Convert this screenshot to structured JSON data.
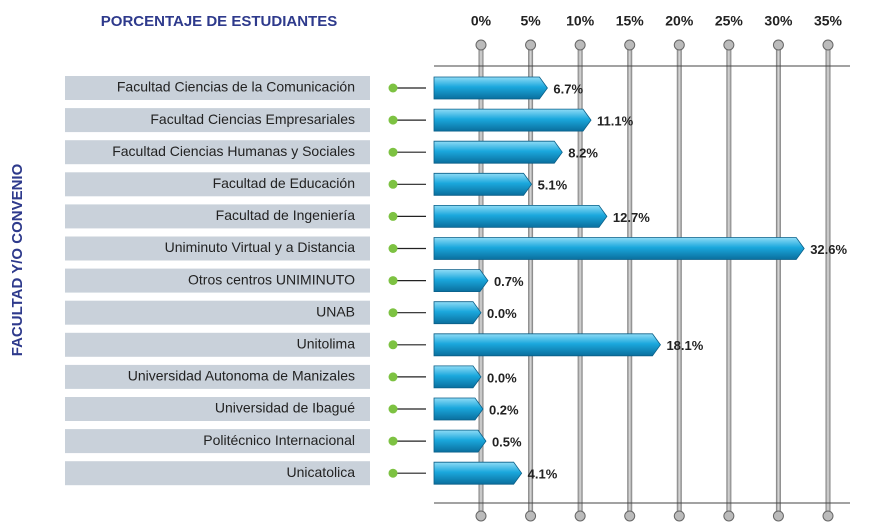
{
  "chart_data": {
    "type": "bar",
    "orientation": "horizontal",
    "title": "PORCENTAJE DE ESTUDIANTES",
    "y_label": "FACULTAD Y/O CONVENIO",
    "categories": [
      "Facultad Ciencias de la Comunicación",
      "Facultad Ciencias Empresariales",
      "Facultad Ciencias Humanas y Sociales",
      "Facultad de Educación",
      "Facultad de Ingeniería",
      "Uniminuto Virtual y a Distancia",
      "Otros centros UNIMINUTO",
      "UNAB",
      "Unitolima",
      "Universidad Autonoma de Manizales",
      "Universidad de Ibagué",
      "Politécnico Internacional",
      "Unicatolica"
    ],
    "values": [
      6.7,
      11.1,
      8.2,
      5.1,
      12.7,
      32.6,
      0.7,
      0.0,
      18.1,
      0.0,
      0.2,
      0.5,
      4.1
    ],
    "value_labels": [
      "6.7%",
      "11.1%",
      "8.2%",
      "5.1%",
      "12.7%",
      "32.6%",
      "0.7%",
      "0.0%",
      "18.1%",
      "0.0%",
      "0.2%",
      "0.5%",
      "4.1%"
    ],
    "color": "#1ba8dd",
    "xlim": [
      0,
      35
    ],
    "xticks": [
      {
        "value": 0,
        "label": "0%"
      },
      {
        "value": 5,
        "label": "5%"
      },
      {
        "value": 10,
        "label": "10%"
      },
      {
        "value": 15,
        "label": "15%"
      },
      {
        "value": 20,
        "label": "20%"
      },
      {
        "value": 25,
        "label": "25%"
      },
      {
        "value": 30,
        "label": "30%"
      },
      {
        "value": 35,
        "label": "35%"
      }
    ],
    "grid": true
  }
}
